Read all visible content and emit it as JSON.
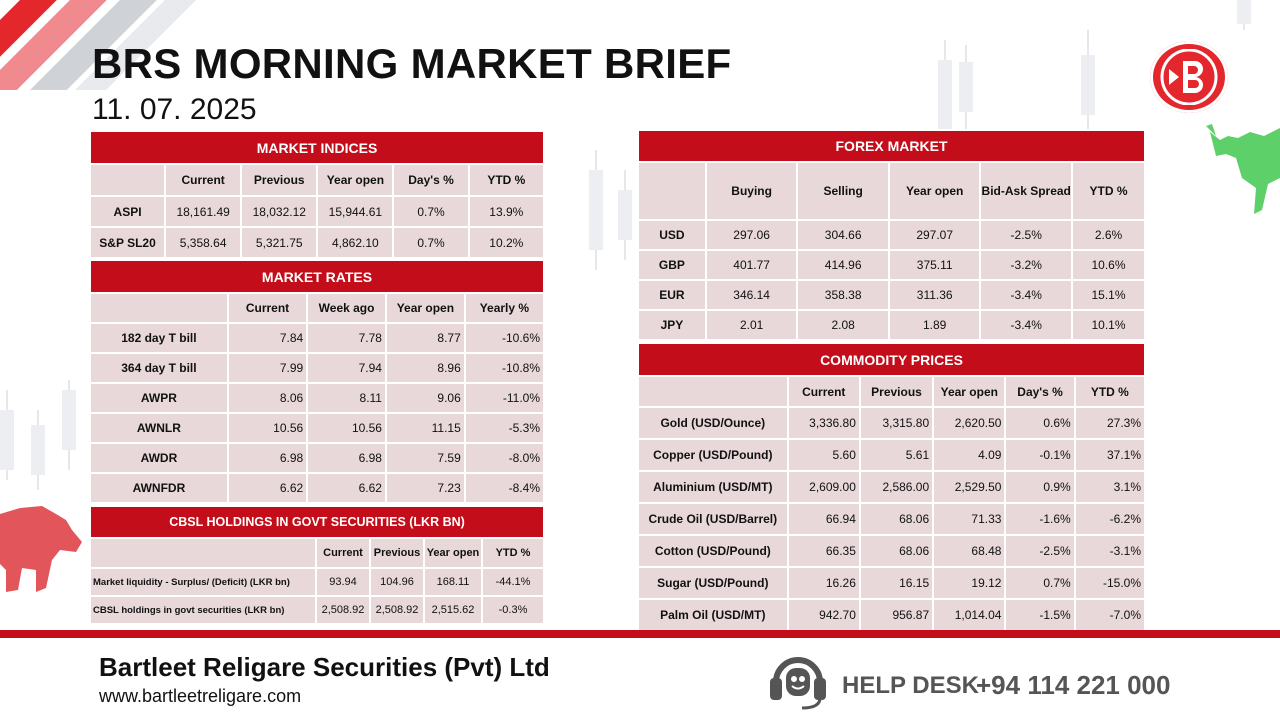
{
  "header": {
    "title": "BRS MORNING MARKET BRIEF",
    "date": "11. 07. 2025"
  },
  "brand": {
    "accent": "#c40d1a",
    "cell_bg": "#e8d8da",
    "logo_icon": "b-logo-icon",
    "bull_icon": "bull-icon",
    "bear_icon": "bear-icon"
  },
  "market_indices": {
    "title": "MARKET INDICES",
    "columns": [
      "",
      "Current",
      "Previous",
      "Year open",
      "Day's %",
      "YTD %"
    ],
    "rows": [
      {
        "label": "ASPI",
        "values": [
          "18,161.49",
          "18,032.12",
          "15,944.61",
          "0.7%",
          "13.9%"
        ]
      },
      {
        "label": "S&P SL20",
        "values": [
          "5,358.64",
          "5,321.75",
          "4,862.10",
          "0.7%",
          "10.2%"
        ]
      }
    ]
  },
  "market_rates": {
    "title": "MARKET RATES",
    "columns": [
      "",
      "Current",
      "Week ago",
      "Year open",
      "Yearly %"
    ],
    "rows": [
      {
        "label": "182 day T bill",
        "values": [
          "7.84",
          "7.78",
          "8.77",
          "-10.6%"
        ]
      },
      {
        "label": "364 day T bill",
        "values": [
          "7.99",
          "7.94",
          "8.96",
          "-10.8%"
        ]
      },
      {
        "label": "AWPR",
        "values": [
          "8.06",
          "8.11",
          "9.06",
          "-11.0%"
        ]
      },
      {
        "label": "AWNLR",
        "values": [
          "10.56",
          "10.56",
          "11.15",
          "-5.3%"
        ]
      },
      {
        "label": "AWDR",
        "values": [
          "6.98",
          "6.98",
          "7.59",
          "-8.0%"
        ]
      },
      {
        "label": "AWNFDR",
        "values": [
          "6.62",
          "6.62",
          "7.23",
          "-8.4%"
        ]
      }
    ]
  },
  "cbsl": {
    "title": "CBSL HOLDINGS IN GOVT SECURITIES (LKR BN)",
    "columns": [
      "",
      "Current",
      "Previous",
      "Year open",
      "YTD %"
    ],
    "rows": [
      {
        "label": "Market liquidity - Surplus/ (Deficit) (LKR bn)",
        "values": [
          "93.94",
          "104.96",
          "168.11",
          "-44.1%"
        ]
      },
      {
        "label": "CBSL holdings in govt securities (LKR bn)",
        "values": [
          "2,508.92",
          "2,508.92",
          "2,515.62",
          "-0.3%"
        ]
      }
    ]
  },
  "forex": {
    "title": "FOREX MARKET",
    "columns": [
      "",
      "Buying",
      "Selling",
      "Year open",
      "Bid-Ask Spread",
      "YTD %"
    ],
    "rows": [
      {
        "label": "USD",
        "values": [
          "297.06",
          "304.66",
          "297.07",
          "-2.5%",
          "2.6%"
        ]
      },
      {
        "label": "GBP",
        "values": [
          "401.77",
          "414.96",
          "375.11",
          "-3.2%",
          "10.6%"
        ]
      },
      {
        "label": "EUR",
        "values": [
          "346.14",
          "358.38",
          "311.36",
          "-3.4%",
          "15.1%"
        ]
      },
      {
        "label": "JPY",
        "values": [
          "2.01",
          "2.08",
          "1.89",
          "-3.4%",
          "10.1%"
        ]
      }
    ]
  },
  "commodity": {
    "title": "COMMODITY PRICES",
    "columns": [
      "",
      "Current",
      "Previous",
      "Year open",
      "Day's %",
      "YTD %"
    ],
    "rows": [
      {
        "label": "Gold (USD/Ounce)",
        "values": [
          "3,336.80",
          "3,315.80",
          "2,620.50",
          "0.6%",
          "27.3%"
        ]
      },
      {
        "label": "Copper (USD/Pound)",
        "values": [
          "5.60",
          "5.61",
          "4.09",
          "-0.1%",
          "37.1%"
        ]
      },
      {
        "label": "Aluminium (USD/MT)",
        "values": [
          "2,609.00",
          "2,586.00",
          "2,529.50",
          "0.9%",
          "3.1%"
        ]
      },
      {
        "label": "Crude Oil (USD/Barrel)",
        "values": [
          "66.94",
          "68.06",
          "71.33",
          "-1.6%",
          "-6.2%"
        ]
      },
      {
        "label": "Cotton (USD/Pound)",
        "values": [
          "66.35",
          "68.06",
          "68.48",
          "-2.5%",
          "-3.1%"
        ]
      },
      {
        "label": "Sugar (USD/Pound)",
        "values": [
          "16.26",
          "16.15",
          "19.12",
          "0.7%",
          "-15.0%"
        ]
      },
      {
        "label": "Palm Oil (USD/MT)",
        "values": [
          "942.70",
          "956.87",
          "1,014.04",
          "-1.5%",
          "-7.0%"
        ]
      }
    ]
  },
  "footer": {
    "company": "Bartleet Religare Securities (Pvt) Ltd",
    "website": "www.bartleetreligare.com",
    "help_label": "HELP DESK",
    "help_phone": "+94 114 221 000",
    "help_icon": "headset-icon"
  }
}
